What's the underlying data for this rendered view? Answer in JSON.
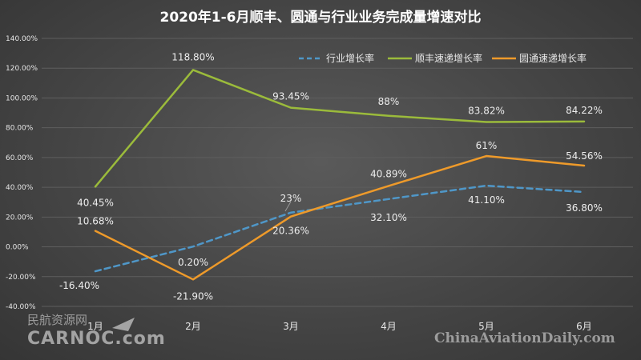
{
  "chart_data": {
    "type": "line",
    "title": "2020年1-6月顺丰、圆通与行业业务完成量增速对比",
    "categories": [
      "1月",
      "2月",
      "3月",
      "4月",
      "5月",
      "6月"
    ],
    "ylim": [
      -40,
      140
    ],
    "ytick_step": 20,
    "ytick_labels": [
      "-40.00%",
      "-20.00%",
      "0.00%",
      "20.00%",
      "40.00%",
      "60.00%",
      "80.00%",
      "100.00%",
      "120.00%",
      "140.00%"
    ],
    "grid": true,
    "legend_position": "top-right",
    "series": [
      {
        "name": "行业增长率",
        "color": "#4f97c8",
        "dashed": true,
        "values": [
          -16.4,
          0.2,
          23,
          32.1,
          41.1,
          36.8
        ],
        "labels": [
          "-16.40%",
          "0.20%",
          "23%",
          "32.10%",
          "41.10%",
          "36.80%"
        ]
      },
      {
        "name": "顺丰速递增长率",
        "color": "#9bbb3b",
        "dashed": false,
        "values": [
          40.45,
          118.8,
          93.45,
          88,
          83.82,
          84.22
        ],
        "labels": [
          "40.45%",
          "118.80%",
          "93.45%",
          "88%",
          "83.82%",
          "84.22%"
        ]
      },
      {
        "name": "圆通速递增长率",
        "color": "#ee9a2a",
        "dashed": false,
        "values": [
          10.68,
          -21.9,
          20.36,
          40.89,
          61,
          54.56
        ],
        "labels": [
          "10.68%",
          "-21.90%",
          "20.36%",
          "40.89%",
          "61%",
          "54.56%"
        ]
      }
    ]
  },
  "watermark": {
    "cn": "民航资源网",
    "brand": "CARNOC.com",
    "site": "ChinaAviationDaily.com"
  }
}
